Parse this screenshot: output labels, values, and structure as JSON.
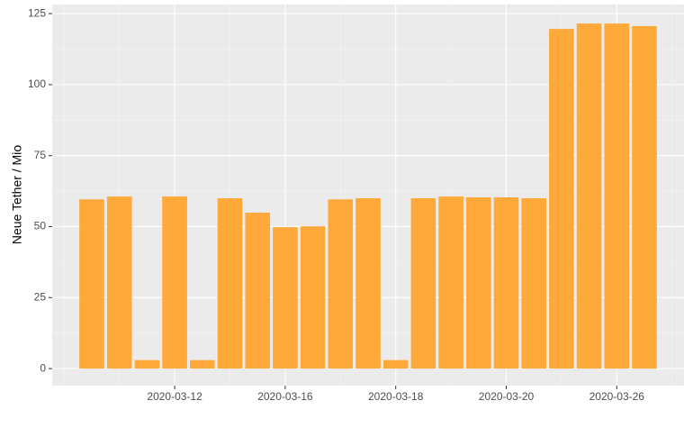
{
  "chart_data": {
    "type": "bar",
    "y_label": "Neue Tether / Mio",
    "categories": [
      null,
      null,
      null,
      "2020-03-12",
      null,
      null,
      null,
      "2020-03-16",
      null,
      null,
      null,
      "2020-03-18",
      null,
      null,
      null,
      "2020-03-20",
      null,
      null,
      null,
      "2020-03-26",
      null
    ],
    "values": [
      59.6,
      60.6,
      3,
      60.6,
      3,
      60,
      54.9,
      49.8,
      50.1,
      59.6,
      60,
      3,
      60,
      60.6,
      60.3,
      60.3,
      60,
      119.6,
      121.5,
      121.5,
      120.6
    ],
    "color": "#ffa93a",
    "ylim": [
      -6,
      128.2
    ],
    "yticks": [
      0,
      25,
      50,
      75,
      100,
      125
    ],
    "grid": true
  }
}
